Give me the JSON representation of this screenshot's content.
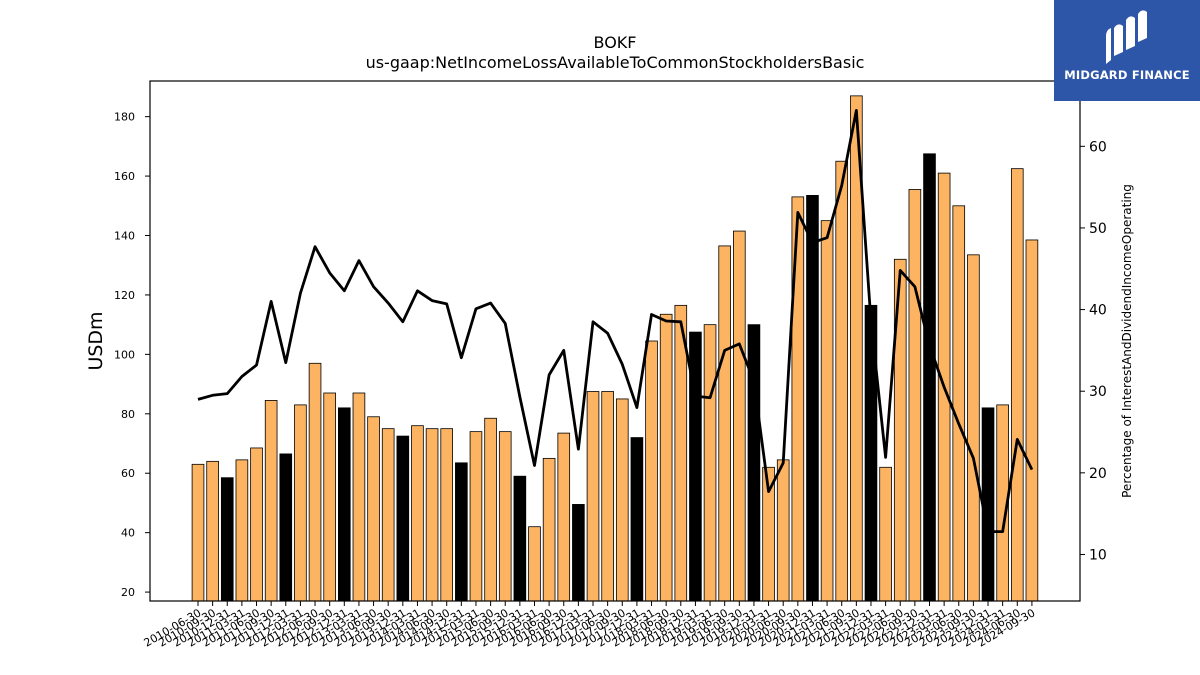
{
  "chart_data": {
    "type": "bar",
    "title": "BOKF",
    "subtitle": "us-gaap:NetIncomeLossAvailableToCommonStockholdersBasic",
    "ylabel": "USDm",
    "y2label": "Percentage of InterestAndDividendIncomeOperating",
    "ylim": [
      17,
      192
    ],
    "y2lim": [
      4.3,
      68
    ],
    "yticks": [
      20,
      40,
      60,
      80,
      100,
      120,
      140,
      160,
      180
    ],
    "y2ticks": [
      10,
      20,
      30,
      40,
      50,
      60
    ],
    "categories": [
      "2010-06-30",
      "2010-09-30",
      "2010-12-31",
      "2011-03-31",
      "2011-06-30",
      "2011-09-30",
      "2011-12-31",
      "2012-03-31",
      "2012-06-30",
      "2012-09-30",
      "2012-12-31",
      "2013-03-31",
      "2013-06-30",
      "2013-09-30",
      "2013-12-31",
      "2014-03-31",
      "2014-06-30",
      "2014-09-30",
      "2014-12-31",
      "2015-03-31",
      "2015-06-30",
      "2015-09-30",
      "2015-12-31",
      "2016-03-31",
      "2016-06-30",
      "2016-09-30",
      "2016-12-31",
      "2017-03-31",
      "2017-06-30",
      "2017-09-30",
      "2017-12-31",
      "2018-03-31",
      "2018-06-30",
      "2018-09-30",
      "2018-12-31",
      "2019-03-31",
      "2019-06-30",
      "2019-09-30",
      "2019-12-31",
      "2020-03-31",
      "2020-06-30",
      "2020-09-30",
      "2020-12-31",
      "2021-03-31",
      "2021-06-30",
      "2021-09-30",
      "2021-12-31",
      "2022-03-31",
      "2022-06-30",
      "2022-09-30",
      "2022-12-31",
      "2023-03-31",
      "2023-06-30",
      "2023-09-30",
      "2023-12-31",
      "2024-03-31",
      "2024-06-30",
      "2024-09-30"
    ],
    "series": [
      {
        "type": "bar",
        "values": [
          63,
          64,
          58.5,
          64.5,
          68.5,
          84.5,
          66.5,
          83,
          97,
          87,
          82,
          87,
          79,
          75,
          72.5,
          76,
          75,
          75,
          63.5,
          74,
          78.5,
          74,
          59,
          42,
          65,
          73.5,
          49.5,
          87.5,
          87.5,
          85,
          72,
          104.5,
          113.5,
          116.5,
          107.5,
          110,
          136.5,
          141.5,
          110,
          62,
          64.5,
          153,
          153.5,
          145,
          165,
          187,
          116.5,
          62,
          132,
          155.5,
          167.5,
          161,
          150,
          133.5,
          82,
          83,
          162.5,
          138.5
        ],
        "highlight": [
          false,
          false,
          true,
          false,
          false,
          false,
          true,
          false,
          false,
          false,
          true,
          false,
          false,
          false,
          true,
          false,
          false,
          false,
          true,
          false,
          false,
          false,
          true,
          false,
          false,
          false,
          true,
          false,
          false,
          false,
          true,
          false,
          false,
          false,
          true,
          false,
          false,
          false,
          true,
          false,
          false,
          false,
          true,
          false,
          false,
          false,
          true,
          false,
          false,
          false,
          true,
          false,
          false,
          false,
          true,
          false,
          false,
          false
        ]
      },
      {
        "type": "line",
        "axis": "right",
        "values": [
          29,
          29.5,
          29.7,
          31.8,
          33.2,
          41,
          33.5,
          42,
          47.7,
          44.5,
          42.3,
          46,
          42.8,
          40.8,
          38.5,
          42.3,
          41.1,
          40.7,
          34.1,
          40.1,
          40.8,
          38.3,
          29.3,
          20.9,
          32,
          35,
          22.9,
          38.5,
          37.1,
          33.3,
          28,
          39.4,
          38.6,
          38.5,
          29.4,
          29.2,
          35,
          35.8,
          31.2,
          17.7,
          21.2,
          51.9,
          48.2,
          48.8,
          55.2,
          64.4,
          38.5,
          21.9,
          44.8,
          42.8,
          35.6,
          30.5,
          26,
          21.8,
          12.8,
          12.8,
          24.1,
          20.4
        ]
      }
    ],
    "colors": {
      "bar": "#fdb462",
      "bar_highlight": "#000000",
      "line": "#000000"
    },
    "grid": false,
    "legend": "none"
  },
  "brand": {
    "name": "MIDGARD FINANCE",
    "bg": "#2d56a8"
  }
}
